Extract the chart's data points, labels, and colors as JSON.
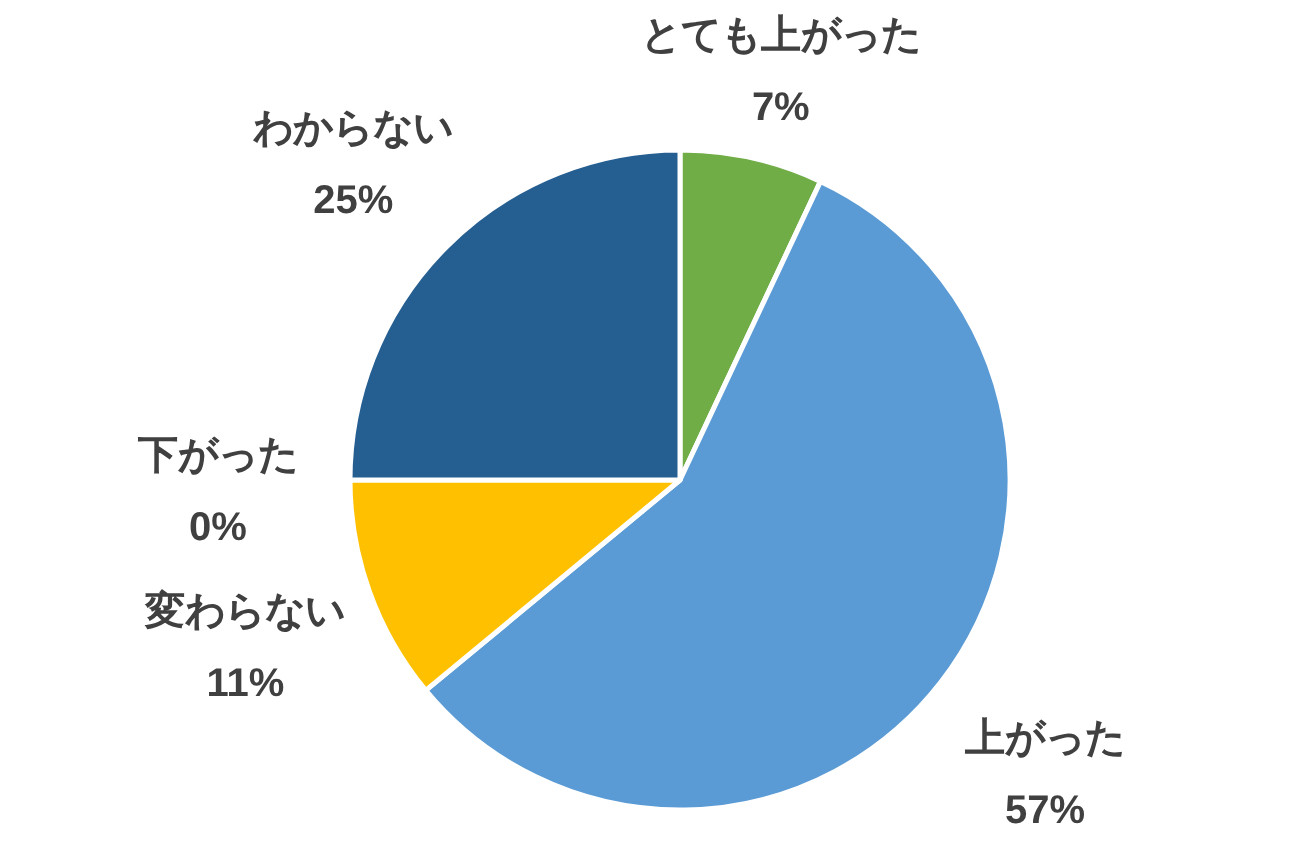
{
  "chart_data": {
    "type": "pie",
    "categories": [
      "とても上がった",
      "上がった",
      "変わらない",
      "下がった",
      "わからない"
    ],
    "values": [
      7,
      57,
      11,
      0,
      25
    ],
    "value_labels": [
      "7%",
      "57%",
      "11%",
      "0%",
      "25%"
    ],
    "colors": [
      "#70ad47",
      "#5b9bd5",
      "#ffc000",
      "#ed7d31",
      "#255e91"
    ]
  }
}
